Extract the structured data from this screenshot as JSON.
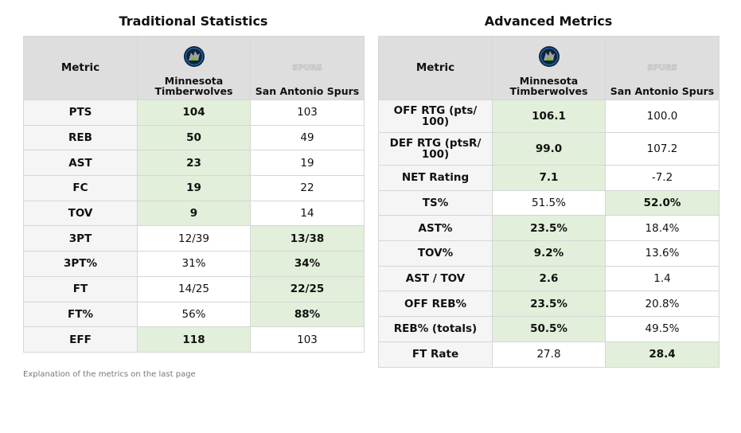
{
  "traditional": {
    "title": "Traditional Statistics",
    "metric_header": "Metric",
    "teams": [
      {
        "name": "Minnesota Timberwolves",
        "logo_icon": "timberwolves-logo-icon"
      },
      {
        "name": "San Antonio Spurs",
        "logo_icon": "spurs-logo-icon",
        "logo_text": "SPURS"
      }
    ],
    "rows": [
      {
        "metric": "PTS",
        "home": "104",
        "away": "103",
        "winner": "home"
      },
      {
        "metric": "REB",
        "home": "50",
        "away": "49",
        "winner": "home"
      },
      {
        "metric": "AST",
        "home": "23",
        "away": "19",
        "winner": "home"
      },
      {
        "metric": "FC",
        "home": "19",
        "away": "22",
        "winner": "home"
      },
      {
        "metric": "TOV",
        "home": "9",
        "away": "14",
        "winner": "home"
      },
      {
        "metric": "3PT",
        "home": "12/39",
        "away": "13/38",
        "winner": "away"
      },
      {
        "metric": "3PT%",
        "home": "31%",
        "away": "34%",
        "winner": "away"
      },
      {
        "metric": "FT",
        "home": "14/25",
        "away": "22/25",
        "winner": "away"
      },
      {
        "metric": "FT%",
        "home": "56%",
        "away": "88%",
        "winner": "away"
      },
      {
        "metric": "EFF",
        "home": "118",
        "away": "103",
        "winner": "home"
      }
    ]
  },
  "advanced": {
    "title": "Advanced Metrics",
    "metric_header": "Metric",
    "teams": [
      {
        "name": "Minnesota Timberwolves",
        "logo_icon": "timberwolves-logo-icon"
      },
      {
        "name": "San Antonio Spurs",
        "logo_icon": "spurs-logo-icon",
        "logo_text": "SPURS"
      }
    ],
    "rows": [
      {
        "metric": "OFF RTG (pts/ 100)",
        "home": "106.1",
        "away": "100.0",
        "winner": "home"
      },
      {
        "metric": "DEF RTG (ptsR/ 100)",
        "home": "99.0",
        "away": "107.2",
        "winner": "home"
      },
      {
        "metric": "NET Rating",
        "home": "7.1",
        "away": "-7.2",
        "winner": "home"
      },
      {
        "metric": "TS%",
        "home": "51.5%",
        "away": "52.0%",
        "winner": "away"
      },
      {
        "metric": "AST%",
        "home": "23.5%",
        "away": "18.4%",
        "winner": "home"
      },
      {
        "metric": "TOV%",
        "home": "9.2%",
        "away": "13.6%",
        "winner": "home"
      },
      {
        "metric": "AST / TOV",
        "home": "2.6",
        "away": "1.4",
        "winner": "home"
      },
      {
        "metric": "OFF REB%",
        "home": "23.5%",
        "away": "20.8%",
        "winner": "home"
      },
      {
        "metric": "REB% (totals)",
        "home": "50.5%",
        "away": "49.5%",
        "winner": "home"
      },
      {
        "metric": "FT Rate",
        "home": "27.8",
        "away": "28.4",
        "winner": "away"
      }
    ]
  },
  "footnote": "Explanation of the metrics on the last page",
  "colors": {
    "winner_bg": "#e2efda",
    "header_bg": "#dedede",
    "metric_bg": "#f5f5f5",
    "border": "#d6d6d6",
    "wolves_navy": "#0c2340",
    "wolves_blue": "#236192"
  }
}
